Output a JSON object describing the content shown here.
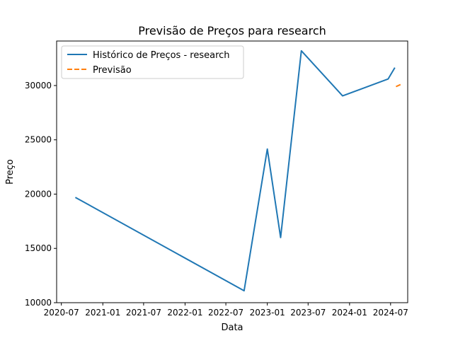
{
  "chart_data": {
    "type": "line",
    "title": "Previsão de Preços para research",
    "xlabel": "Data",
    "ylabel": "Preço",
    "x_tick_labels": [
      "2020-07",
      "2021-01",
      "2021-07",
      "2022-01",
      "2022-07",
      "2023-01",
      "2023-07",
      "2024-01",
      "2024-07"
    ],
    "y_tick_labels": [
      "10000",
      "15000",
      "20000",
      "25000",
      "30000"
    ],
    "y_ticks": [
      10000,
      15000,
      20000,
      25000,
      30000
    ],
    "x_ticks": [
      "2020-07-01",
      "2021-01-01",
      "2021-07-01",
      "2022-01-01",
      "2022-07-01",
      "2023-01-01",
      "2023-07-01",
      "2024-01-01",
      "2024-07-01"
    ],
    "xlim": [
      "2020-06-10",
      "2024-09-15"
    ],
    "ylim": [
      10000,
      34100
    ],
    "grid": false,
    "legend_position": "upper-left",
    "series": [
      {
        "name": "Histórico de Preços - research",
        "color": "#1f77b4",
        "style": "solid",
        "points": [
          {
            "x": "2020-09-01",
            "y": 19700
          },
          {
            "x": "2022-09-20",
            "y": 11100
          },
          {
            "x": "2023-01-01",
            "y": 24150
          },
          {
            "x": "2023-03-01",
            "y": 16000
          },
          {
            "x": "2023-06-01",
            "y": 33200
          },
          {
            "x": "2023-12-01",
            "y": 29050
          },
          {
            "x": "2024-06-20",
            "y": 30600
          },
          {
            "x": "2024-07-20",
            "y": 31650
          }
        ]
      },
      {
        "name": "Previsão",
        "color": "#ff7f0e",
        "style": "dashed",
        "points": [
          {
            "x": "2024-07-25",
            "y": 29900
          },
          {
            "x": "2024-08-20",
            "y": 30150
          }
        ]
      }
    ]
  }
}
